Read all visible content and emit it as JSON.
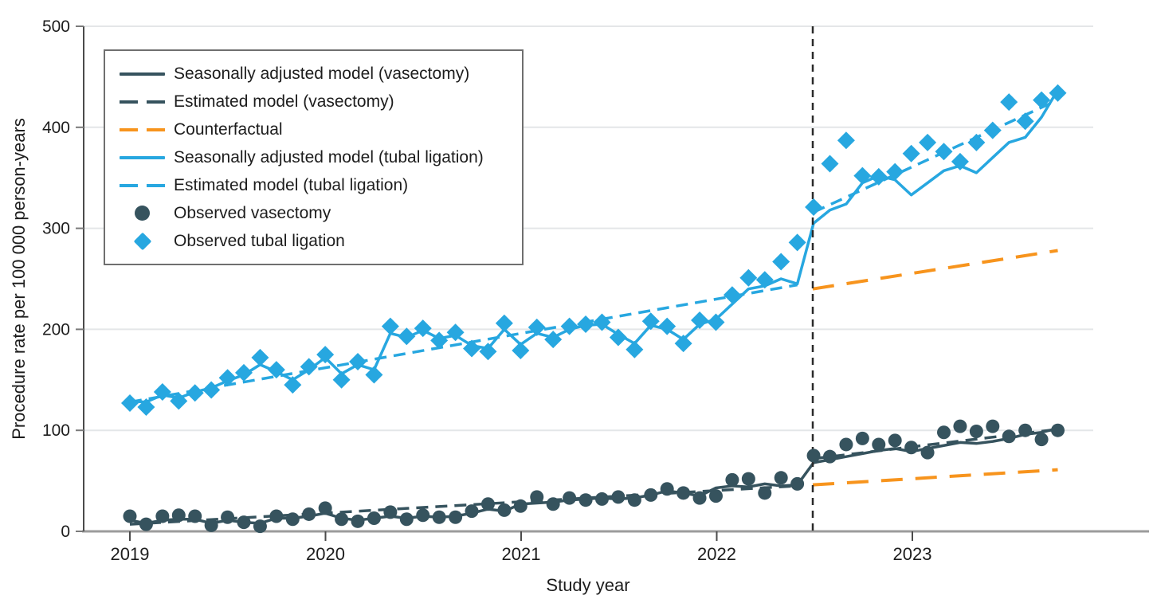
{
  "chart_data": {
    "type": "line",
    "title": "",
    "xlabel": "Study year",
    "ylabel": "Procedure rate per 100 000 person-years",
    "ylim": [
      0,
      500
    ],
    "yticks": [
      0,
      100,
      200,
      300,
      400,
      500
    ],
    "xticks": [
      "2019",
      "2020",
      "2021",
      "2022",
      "2023"
    ],
    "x_unit": "month",
    "x_start": "2019-01",
    "x_end": "2023-10",
    "grid": "horizontal-only",
    "legend_position": "upper-left-inside",
    "intervention": {
      "x": 2022.5,
      "style": "vertical-dashed-black"
    },
    "colors": {
      "vasectomy": "#36535E",
      "tubal_ligation": "#27A7E0",
      "counterfactual": "#F7941D",
      "gridline": "#E4E6E8",
      "axis": "#9B9B9B",
      "spine": "#4B4B4B",
      "intervention_line": "#2A2A2A",
      "text": "#1D1D1D"
    },
    "series": {
      "observed_vasectomy": {
        "label": "Observed vasectomy",
        "marker": "circle",
        "values": [
          15,
          7,
          15,
          16,
          15,
          6,
          14,
          9,
          5,
          15,
          12,
          17,
          23,
          12,
          10,
          13,
          19,
          12,
          16,
          14,
          14,
          20,
          27,
          21,
          25,
          34,
          27,
          33,
          31,
          32,
          34,
          31,
          36,
          42,
          38,
          33,
          35,
          51,
          52,
          38,
          53,
          47,
          75,
          74,
          86,
          92,
          86,
          90,
          83,
          78,
          98,
          104,
          99,
          104,
          94,
          100,
          91,
          100
        ]
      },
      "observed_tubal": {
        "label": "Observed tubal ligation",
        "marker": "diamond",
        "values": [
          127,
          123,
          138,
          129,
          137,
          140,
          152,
          157,
          172,
          160,
          145,
          163,
          175,
          150,
          168,
          155,
          203,
          193,
          201,
          189,
          197,
          181,
          178,
          206,
          179,
          202,
          190,
          203,
          205,
          207,
          192,
          180,
          208,
          203,
          186,
          209,
          207,
          234,
          251,
          249,
          267,
          286,
          321,
          364,
          387,
          352,
          351,
          356,
          374,
          385,
          376,
          366,
          385,
          397,
          425,
          406,
          427,
          434
        ]
      },
      "seasonal_vasectomy": {
        "label": "Seasonally adjusted model (vasectomy)",
        "values": [
          11,
          8,
          11,
          12,
          12,
          8,
          11,
          9,
          8,
          13,
          13,
          15,
          18,
          13,
          11,
          13,
          15,
          13,
          15,
          14,
          15,
          18,
          22,
          20,
          27,
          28,
          29,
          31,
          32,
          33,
          32,
          33,
          36,
          40,
          38,
          35,
          43,
          45,
          44,
          47,
          45,
          46,
          68,
          71,
          74,
          77,
          80,
          82,
          79,
          82,
          85,
          88,
          87,
          89,
          92,
          96,
          98,
          102
        ]
      },
      "seasonal_tubal": {
        "label": "Seasonally adjusted model (tubal ligation)",
        "values": [
          129,
          128,
          135,
          132,
          138,
          142,
          149,
          155,
          165,
          158,
          150,
          160,
          172,
          156,
          165,
          160,
          196,
          192,
          199,
          191,
          194,
          184,
          181,
          200,
          185,
          196,
          192,
          200,
          204,
          205,
          195,
          186,
          204,
          200,
          190,
          205,
          210,
          225,
          240,
          243,
          250,
          245,
          305,
          318,
          324,
          345,
          352,
          348,
          333,
          345,
          357,
          362,
          355,
          370,
          385,
          390,
          410,
          437
        ]
      },
      "estimated_vasectomy": {
        "label": "Estimated model (vasectomy)",
        "pre": {
          "start_value": 7,
          "end_value": 45,
          "from": "2019-01",
          "to": "2022-06"
        },
        "post": {
          "start_value": 72,
          "end_value": 101,
          "from": "2022-07",
          "to": "2023-10"
        }
      },
      "estimated_tubal": {
        "label": "Estimated model (tubal ligation)",
        "pre": {
          "start_value": 128,
          "end_value": 244,
          "from": "2019-01",
          "to": "2022-06"
        },
        "post": {
          "start_value": 316,
          "end_value": 427,
          "from": "2022-07",
          "to": "2023-10"
        }
      },
      "counterfactual_vasectomy": {
        "label": "Counterfactual",
        "start_value": 46,
        "end_value": 61,
        "from": "2022-07",
        "to": "2023-10"
      },
      "counterfactual_tubal": {
        "label": "Counterfactual",
        "start_value": 240,
        "end_value": 278,
        "from": "2022-07",
        "to": "2023-10"
      }
    },
    "legend": [
      {
        "label": "Seasonally adjusted model (vasectomy)",
        "swatch": "line-solid",
        "color": "#36535E"
      },
      {
        "label": "Estimated model (vasectomy)",
        "swatch": "line-dashed",
        "color": "#36535E"
      },
      {
        "label": "Counterfactual",
        "swatch": "line-dashed",
        "color": "#F7941D"
      },
      {
        "label": "Seasonally adjusted model (tubal ligation)",
        "swatch": "line-solid",
        "color": "#27A7E0"
      },
      {
        "label": "Estimated model (tubal ligation)",
        "swatch": "line-dashed",
        "color": "#27A7E0"
      },
      {
        "label": "Observed vasectomy",
        "swatch": "circle",
        "color": "#36535E"
      },
      {
        "label": "Observed tubal ligation",
        "swatch": "diamond",
        "color": "#27A7E0"
      }
    ]
  }
}
